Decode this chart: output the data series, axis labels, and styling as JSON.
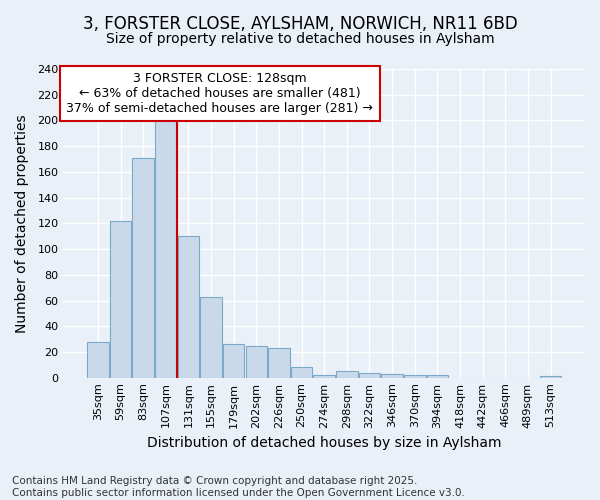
{
  "title_line1": "3, FORSTER CLOSE, AYLSHAM, NORWICH, NR11 6BD",
  "title_line2": "Size of property relative to detached houses in Aylsham",
  "xlabel": "Distribution of detached houses by size in Aylsham",
  "ylabel": "Number of detached properties",
  "categories": [
    "35sqm",
    "59sqm",
    "83sqm",
    "107sqm",
    "131sqm",
    "155sqm",
    "179sqm",
    "202sqm",
    "226sqm",
    "250sqm",
    "274sqm",
    "298sqm",
    "322sqm",
    "346sqm",
    "370sqm",
    "394sqm",
    "418sqm",
    "442sqm",
    "466sqm",
    "489sqm",
    "513sqm"
  ],
  "values": [
    28,
    122,
    171,
    200,
    110,
    63,
    26,
    25,
    23,
    8,
    2,
    5,
    4,
    3,
    2,
    2,
    0,
    0,
    0,
    0,
    1
  ],
  "bar_color": "#c9d9ea",
  "bar_edge_color": "#7aaac8",
  "background_color": "#eaf0f8",
  "grid_color": "#ffffff",
  "vline_color": "#cc0000",
  "vline_index": 3.5,
  "annotation_text": "3 FORSTER CLOSE: 128sqm\n← 63% of detached houses are smaller (481)\n37% of semi-detached houses are larger (281) →",
  "annotation_box_color": "#ffffff",
  "annotation_box_edge_color": "#cc0000",
  "ylim": [
    0,
    240
  ],
  "yticks": [
    0,
    20,
    40,
    60,
    80,
    100,
    120,
    140,
    160,
    180,
    200,
    220,
    240
  ],
  "footer_text": "Contains HM Land Registry data © Crown copyright and database right 2025.\nContains public sector information licensed under the Open Government Licence v3.0.",
  "title_fontsize": 12,
  "subtitle_fontsize": 10,
  "axis_label_fontsize": 10,
  "tick_fontsize": 8,
  "annotation_fontsize": 9,
  "footer_fontsize": 7.5
}
